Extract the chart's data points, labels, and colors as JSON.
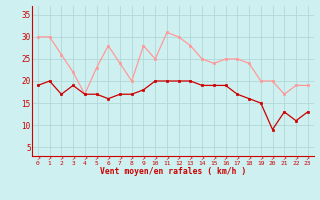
{
  "hours": [
    0,
    1,
    2,
    3,
    4,
    5,
    6,
    7,
    8,
    9,
    10,
    11,
    12,
    13,
    14,
    15,
    16,
    17,
    18,
    19,
    20,
    21,
    22,
    23
  ],
  "wind_avg": [
    19,
    20,
    17,
    19,
    17,
    17,
    16,
    17,
    17,
    18,
    20,
    20,
    20,
    20,
    19,
    19,
    19,
    17,
    16,
    15,
    9,
    13,
    11,
    13
  ],
  "wind_gust": [
    30,
    30,
    26,
    22,
    17,
    23,
    28,
    24,
    20,
    28,
    25,
    31,
    30,
    28,
    25,
    24,
    25,
    25,
    24,
    20,
    20,
    17,
    19,
    19
  ],
  "bg_color": "#cff0f0",
  "grid_color": "#b0d8d8",
  "avg_color": "#cc0000",
  "gust_color": "#ff9999",
  "axis_color": "#cc0000",
  "xlabel": "Vent moyen/en rafales ( km/h )",
  "xlabel_color": "#cc0000",
  "ylabel_ticks": [
    5,
    10,
    15,
    20,
    25,
    30,
    35
  ],
  "ylim": [
    3,
    37
  ],
  "xlim": [
    -0.5,
    23.5
  ],
  "arrow": "↗"
}
